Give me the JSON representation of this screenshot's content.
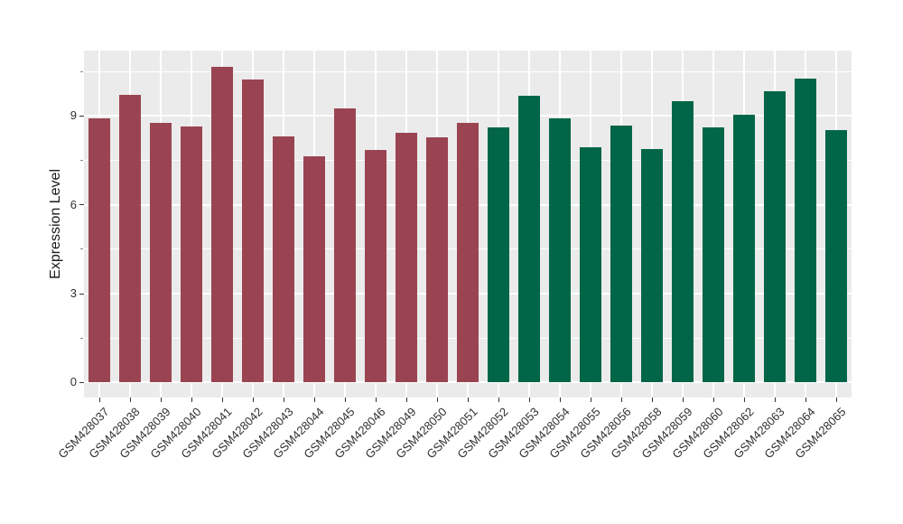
{
  "chart_data": {
    "type": "bar",
    "title": "",
    "xlabel": "",
    "ylabel": "Expression Level",
    "y_ticks": [
      0,
      3,
      6,
      9
    ],
    "y_minor_ticks": [
      1.5,
      4.5,
      7.5,
      10.5
    ],
    "ylim": [
      -0.5,
      11.2
    ],
    "grid": true,
    "legend_position": "none",
    "bars": [
      {
        "label": "GSM428037",
        "value": 8.9,
        "color": "#9A4452"
      },
      {
        "label": "GSM428038",
        "value": 9.72,
        "color": "#9A4452"
      },
      {
        "label": "GSM428039",
        "value": 8.75,
        "color": "#9A4452"
      },
      {
        "label": "GSM428040",
        "value": 8.65,
        "color": "#9A4452"
      },
      {
        "label": "GSM428041",
        "value": 10.66,
        "color": "#9A4452"
      },
      {
        "label": "GSM428042",
        "value": 10.21,
        "color": "#9A4452"
      },
      {
        "label": "GSM428043",
        "value": 8.31,
        "color": "#9A4452"
      },
      {
        "label": "GSM428044",
        "value": 7.64,
        "color": "#9A4452"
      },
      {
        "label": "GSM428045",
        "value": 9.26,
        "color": "#9A4452"
      },
      {
        "label": "GSM428046",
        "value": 7.85,
        "color": "#9A4452"
      },
      {
        "label": "GSM428049",
        "value": 8.43,
        "color": "#9A4452"
      },
      {
        "label": "GSM428050",
        "value": 8.28,
        "color": "#9A4452"
      },
      {
        "label": "GSM428051",
        "value": 8.77,
        "color": "#9A4452"
      },
      {
        "label": "GSM428052",
        "value": 8.61,
        "color": "#006647"
      },
      {
        "label": "GSM428053",
        "value": 9.66,
        "color": "#006647"
      },
      {
        "label": "GSM428054",
        "value": 8.92,
        "color": "#006647"
      },
      {
        "label": "GSM428055",
        "value": 7.95,
        "color": "#006647"
      },
      {
        "label": "GSM428056",
        "value": 8.67,
        "color": "#006647"
      },
      {
        "label": "GSM428058",
        "value": 7.88,
        "color": "#006647"
      },
      {
        "label": "GSM428059",
        "value": 9.48,
        "color": "#006647"
      },
      {
        "label": "GSM428060",
        "value": 8.61,
        "color": "#006647"
      },
      {
        "label": "GSM428062",
        "value": 9.04,
        "color": "#006647"
      },
      {
        "label": "GSM428063",
        "value": 9.83,
        "color": "#006647"
      },
      {
        "label": "GSM428064",
        "value": 10.27,
        "color": "#006647"
      },
      {
        "label": "GSM428065",
        "value": 8.52,
        "color": "#006647"
      }
    ],
    "style": {
      "panel_bg": "#EBEBEB",
      "grid_color": "#FFFFFF",
      "axis_text_color": "#303030",
      "group1_color": "#9A4452",
      "group2_color": "#006647",
      "figure_bg": "#FFFFFF"
    }
  }
}
